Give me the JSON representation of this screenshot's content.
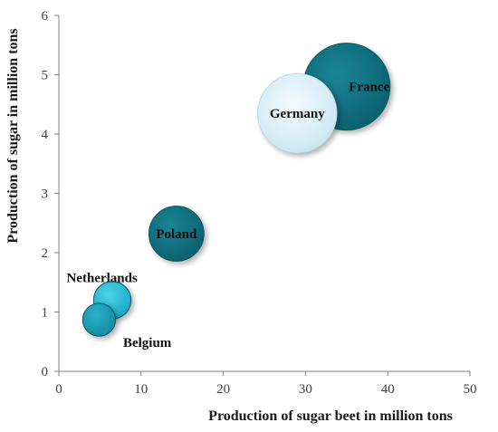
{
  "chart_data": {
    "type": "scatter",
    "subtype": "bubble",
    "title": "",
    "xlabel": "Production of sugar beet in million tons",
    "ylabel": "Production of sugar in million tons",
    "xlim": [
      0,
      50
    ],
    "ylim": [
      0,
      6
    ],
    "xticks": [
      "0",
      "10",
      "20",
      "30",
      "40",
      "50"
    ],
    "yticks": [
      "0",
      "1",
      "2",
      "3",
      "4",
      "5",
      "6"
    ],
    "grid": false,
    "legend": "none",
    "bubbles": [
      {
        "label": "France",
        "x": 35.0,
        "y": 4.8,
        "size": 35.0,
        "color": "#0f7283",
        "label_side": "right"
      },
      {
        "label": "Germany",
        "x": 29.0,
        "y": 4.35,
        "size": 29.0,
        "color": "#dff1f8",
        "label_side": "center"
      },
      {
        "label": "Poland",
        "x": 14.3,
        "y": 2.32,
        "size": 14.0,
        "color": "#0f7283",
        "label_side": "center"
      },
      {
        "label": "Netherlands",
        "x": 6.5,
        "y": 1.2,
        "size": 6.5,
        "color": "#26c0dd",
        "label_side": "left"
      },
      {
        "label": "Belgium",
        "x": 4.9,
        "y": 0.87,
        "size": 5.0,
        "color": "#1aa3bb",
        "label_side": "below-right"
      }
    ]
  }
}
